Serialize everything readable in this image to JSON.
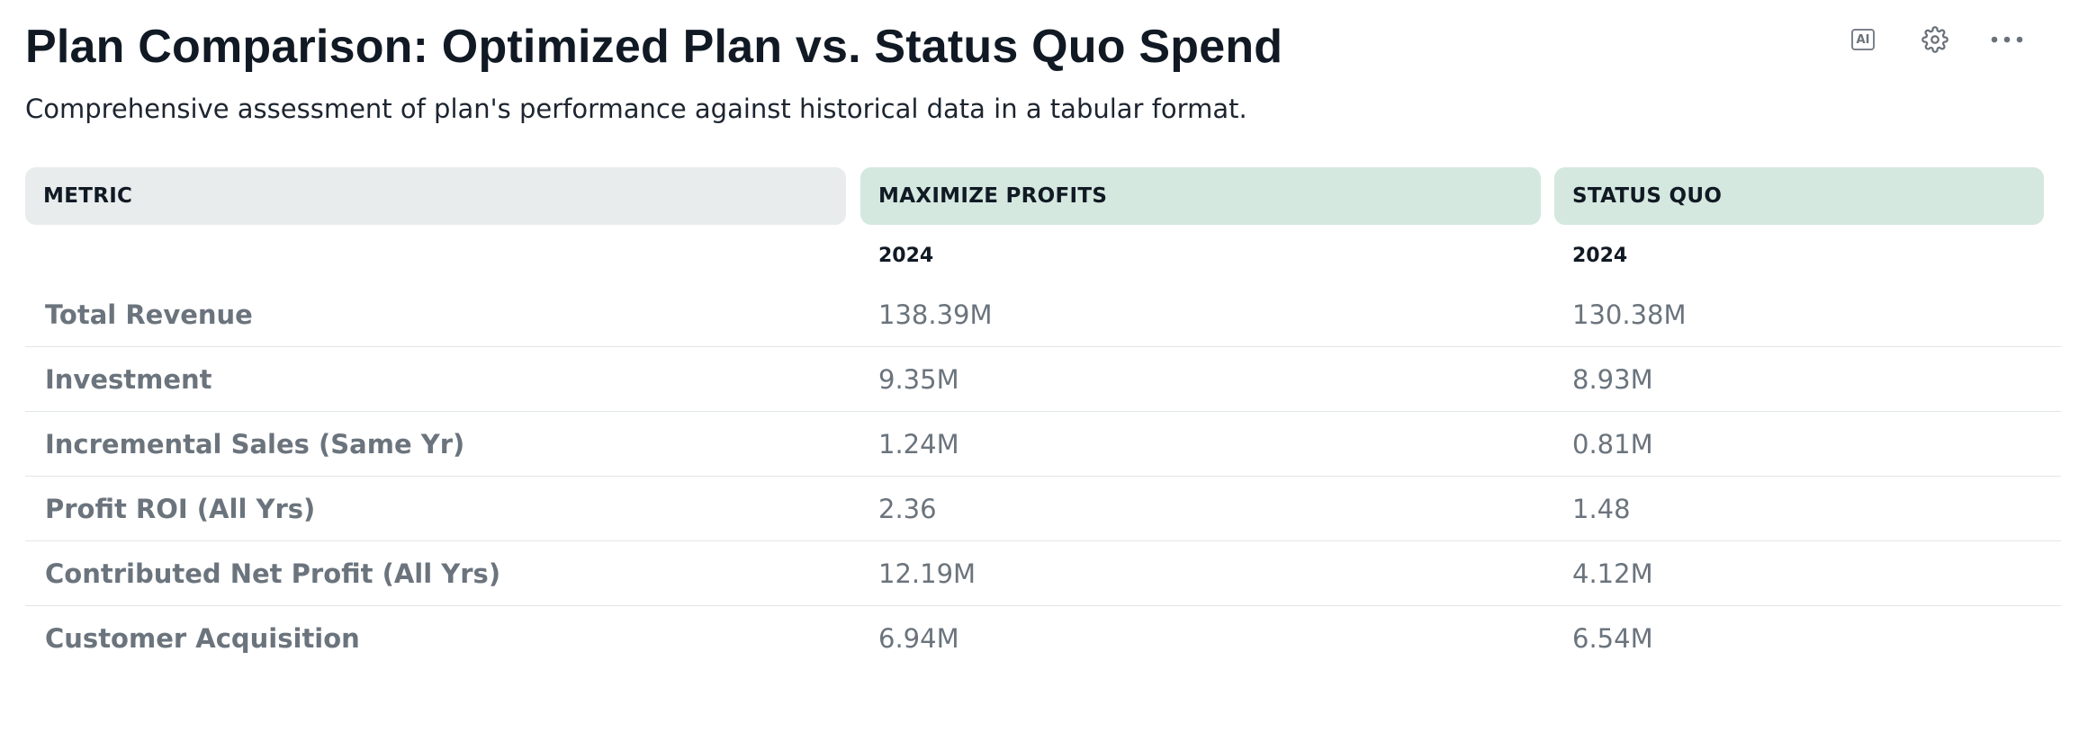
{
  "header": {
    "title": "Plan Comparison: Optimized Plan vs. Status Quo Spend",
    "subtitle": "Comprehensive assessment of plan's performance against historical data in a tabular format."
  },
  "toolbar": {
    "ai_label": "AI",
    "icons": [
      "ai-icon",
      "gear-icon",
      "more-horizontal-icon"
    ]
  },
  "table": {
    "columns": [
      "METRIC",
      "MAXIMIZE PROFITS",
      "STATUS QUO"
    ],
    "years": [
      "2024",
      "2024"
    ],
    "rows": [
      {
        "metric": "Total Revenue",
        "optimized": "138.39M",
        "status_quo": "130.38M"
      },
      {
        "metric": "Investment",
        "optimized": "9.35M",
        "status_quo": "8.93M"
      },
      {
        "metric": "Incremental Sales (Same Yr)",
        "optimized": "1.24M",
        "status_quo": "0.81M"
      },
      {
        "metric": "Profit ROI (All Yrs)",
        "optimized": "2.36",
        "status_quo": "1.48"
      },
      {
        "metric": "Contributed Net Profit (All Yrs)",
        "optimized": "12.19M",
        "status_quo": "4.12M"
      },
      {
        "metric": "Customer Acquisition",
        "optimized": "6.94M",
        "status_quo": "6.54M"
      }
    ]
  },
  "colors": {
    "metric_header_bg": "#e8ecec",
    "plan_header_bg": "#d4e8df",
    "muted_text": "#6b747d",
    "title_text": "#111a24"
  }
}
